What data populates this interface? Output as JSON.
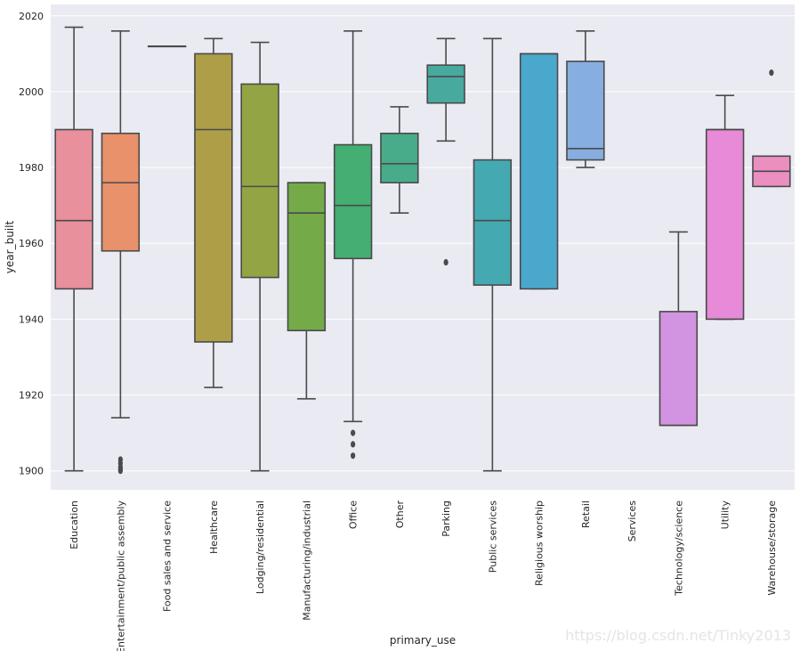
{
  "chart_data": {
    "type": "box",
    "xlabel": "primary_use",
    "ylabel": "year_built",
    "ylim": [
      1895,
      2023
    ],
    "yticks": [
      1900,
      1920,
      1940,
      1960,
      1980,
      2000,
      2020
    ],
    "grid": true,
    "background": "#eaeaf2",
    "line_color": "#4a4a4a",
    "categories": [
      "Education",
      "Entertainment/public assembly",
      "Food sales and service",
      "Healthcare",
      "Lodging/residential",
      "Manufacturing/industrial",
      "Office",
      "Other",
      "Parking",
      "Public services",
      "Religious worship",
      "Retail",
      "Services",
      "Technology/science",
      "Utility",
      "Warehouse/storage"
    ],
    "boxes": [
      {
        "name": "Education",
        "color": "#e8909c",
        "whisker_low": 1900,
        "q1": 1948,
        "median": 1966,
        "q3": 1990,
        "whisker_high": 2017,
        "outliers": []
      },
      {
        "name": "Entertainment/public assembly",
        "color": "#e8916b",
        "whisker_low": 1914,
        "q1": 1958,
        "median": 1976,
        "q3": 1989,
        "whisker_high": 2016,
        "outliers": [
          1900,
          1900.5,
          1901,
          1902,
          1903
        ]
      },
      {
        "name": "Food sales and service",
        "color": "#c69c38",
        "whisker_low": 2012,
        "q1": 2012,
        "median": 2012,
        "q3": 2012,
        "whisker_high": 2012,
        "outliers": []
      },
      {
        "name": "Healthcare",
        "color": "#ae9e47",
        "whisker_low": 1922,
        "q1": 1934,
        "median": 1990,
        "q3": 2010,
        "whisker_high": 2014,
        "outliers": []
      },
      {
        "name": "Lodging/residential",
        "color": "#93a445",
        "whisker_low": 1900,
        "q1": 1951,
        "median": 1975,
        "q3": 2002,
        "whisker_high": 2013,
        "outliers": []
      },
      {
        "name": "Manufacturing/industrial",
        "color": "#74aa48",
        "whisker_low": 1919,
        "q1": 1937,
        "median": 1968,
        "q3": 1976,
        "whisker_high": 1976,
        "outliers": []
      },
      {
        "name": "Office",
        "color": "#44ae73",
        "whisker_low": 1913,
        "q1": 1956,
        "median": 1970,
        "q3": 1986,
        "whisker_high": 2016,
        "outliers": [
          1904,
          1907,
          1910
        ]
      },
      {
        "name": "Other",
        "color": "#48ab8a",
        "whisker_low": 1968,
        "q1": 1976,
        "median": 1981,
        "q3": 1989,
        "whisker_high": 1996,
        "outliers": []
      },
      {
        "name": "Parking",
        "color": "#48aa9e",
        "whisker_low": 1987,
        "q1": 1997,
        "median": 2004,
        "q3": 2007,
        "whisker_high": 2014,
        "outliers": [
          1955
        ]
      },
      {
        "name": "Public services",
        "color": "#45a9b2",
        "whisker_low": 1900,
        "q1": 1949,
        "median": 1966,
        "q3": 1982,
        "whisker_high": 2014,
        "outliers": []
      },
      {
        "name": "Religious worship",
        "color": "#4aa8cc",
        "whisker_low": 1948,
        "q1": 1948,
        "median": 2010,
        "q3": 2010,
        "whisker_high": 2010,
        "outliers": []
      },
      {
        "name": "Retail",
        "color": "#86aee0",
        "whisker_low": 1980,
        "q1": 1982,
        "median": 1985,
        "q3": 2008,
        "whisker_high": 2016,
        "outliers": []
      },
      {
        "name": "Services",
        "color": "#b29be0",
        "whisker_low": null,
        "q1": null,
        "median": null,
        "q3": null,
        "whisker_high": null,
        "outliers": []
      },
      {
        "name": "Technology/science",
        "color": "#d293e0",
        "whisker_low": 1912,
        "q1": 1912,
        "median": 1912,
        "q3": 1942,
        "whisker_high": 1963,
        "outliers": []
      },
      {
        "name": "Utility",
        "color": "#e78ad8",
        "whisker_low": 1940,
        "q1": 1940,
        "median": 1990,
        "q3": 1990,
        "whisker_high": 1999,
        "outliers": []
      },
      {
        "name": "Warehouse/storage",
        "color": "#eb8ec0",
        "whisker_low": 1975,
        "q1": 1975,
        "median": 1979,
        "q3": 1983,
        "whisker_high": 1983,
        "outliers": [
          2005
        ]
      }
    ]
  },
  "watermark": "https://blog.csdn.net/Tinky2013"
}
